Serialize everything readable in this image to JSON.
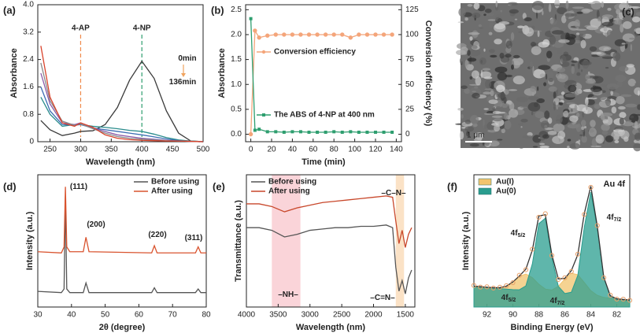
{
  "chart_data": [
    {
      "type": "line",
      "panel": "(a)",
      "xlabel": "Wavelength (nm)",
      "ylabel": "Absorbance",
      "xlim": [
        230,
        500
      ],
      "xticks": [
        250,
        300,
        350,
        400,
        450,
        500
      ],
      "ylim": [
        0,
        4
      ],
      "yticks": [
        0,
        0.8,
        1.6,
        2.4,
        3.2,
        {
          "value": 4,
          "label": "4.0"
        }
      ],
      "markers": [
        {
          "x": 300,
          "label": "4-AP",
          "color": "#f08a4b"
        },
        {
          "x": 400,
          "label": "4-NP",
          "color": "#2e9e6f"
        }
      ],
      "annotations": [
        {
          "text": "0min",
          "color": "#f0a35e"
        },
        {
          "text": "136min",
          "color": "#f0a35e"
        }
      ],
      "x": [
        235,
        250,
        270,
        290,
        300,
        320,
        340,
        360,
        380,
        400,
        420,
        440,
        460,
        480,
        500
      ],
      "series": [
        {
          "color": "#3a3a3a",
          "values": [
            0.62,
            0.35,
            0.18,
            0.25,
            0.3,
            0.32,
            0.5,
            1.0,
            1.8,
            2.35,
            1.85,
            0.9,
            0.25,
            0.02,
            0
          ]
        },
        {
          "color": "#2a8c8c",
          "values": [
            1.3,
            0.8,
            0.45,
            0.5,
            0.5,
            0.45,
            0.42,
            0.38,
            0.33,
            0.3,
            0.22,
            0.12,
            0.05,
            0.02,
            0
          ]
        },
        {
          "color": "#3b6db3",
          "values": [
            1.6,
            0.9,
            0.5,
            0.48,
            0.5,
            0.4,
            0.35,
            0.3,
            0.25,
            0.2,
            0.14,
            0.08,
            0.03,
            0.01,
            0
          ]
        },
        {
          "color": "#8a5aa8",
          "values": [
            2.0,
            1.1,
            0.55,
            0.5,
            0.55,
            0.4,
            0.3,
            0.2,
            0.15,
            0.1,
            0.07,
            0.04,
            0.02,
            0.01,
            0
          ]
        },
        {
          "color": "#8a8a8a",
          "values": [
            2.3,
            1.2,
            0.6,
            0.48,
            0.52,
            0.38,
            0.25,
            0.15,
            0.1,
            0.07,
            0.05,
            0.03,
            0.02,
            0.01,
            0
          ]
        },
        {
          "color": "#d9432b",
          "values": [
            2.8,
            1.3,
            0.55,
            0.45,
            0.55,
            0.42,
            0.2,
            0.1,
            0.06,
            0.04,
            0.03,
            0.02,
            0.02,
            0.01,
            0
          ]
        }
      ]
    },
    {
      "type": "line",
      "panel": "(b)",
      "xlabel": "Time (min)",
      "ylabel": "Absorbance",
      "y2label": "Conversion efficiency (%)",
      "y2color": "#f4a57a",
      "xlim": [
        -5,
        145
      ],
      "xticks": [
        0,
        20,
        40,
        60,
        80,
        100,
        120,
        140
      ],
      "ylim": [
        -0.15,
        2.6
      ],
      "yticks": [
        {
          "value": 0,
          "label": "0.0"
        },
        0.5,
        {
          "value": 1,
          "label": "1.0"
        },
        1.5,
        {
          "value": 2,
          "label": "2.0"
        },
        2.5
      ],
      "y2lim": [
        -7.5,
        130
      ],
      "y2ticks": [
        0,
        25,
        50,
        75,
        100,
        125
      ],
      "legend": "inline",
      "x": [
        0,
        4,
        8,
        16,
        24,
        32,
        40,
        48,
        56,
        64,
        72,
        80,
        88,
        96,
        104,
        112,
        120,
        128,
        136
      ],
      "series": [
        {
          "name": "Conversion efficiency",
          "color": "#f4a57a",
          "axis": "y2",
          "marker": "o",
          "values": [
            0,
            104,
            97,
            99,
            100,
            100,
            100,
            100,
            100,
            100,
            100,
            100,
            100,
            97,
            100,
            100,
            100,
            100,
            100
          ]
        },
        {
          "name": "The ABS of 4-NP at 400 nm",
          "color": "#2e9e6f",
          "marker": "s",
          "values": [
            2.32,
            0.08,
            0.1,
            0.05,
            0.05,
            0.04,
            0.05,
            0.05,
            0.04,
            0.04,
            0.04,
            0.05,
            0.04,
            0.05,
            0.04,
            0.04,
            0.04,
            0.04,
            0.04
          ]
        }
      ]
    },
    {
      "type": "image",
      "panel": "(c)",
      "scale_bar": "1 μm"
    },
    {
      "type": "line",
      "panel": "(d)",
      "xlabel": "2θ (degree)",
      "ylabel": "Intensity (a.u.)",
      "xlim": [
        30,
        80
      ],
      "xticks": [
        30,
        40,
        50,
        60,
        70,
        80
      ],
      "ylim": [
        0,
        11
      ],
      "legend": "upper right",
      "annotations": [
        {
          "text": "(111)"
        },
        {
          "text": "(200)"
        },
        {
          "text": "(220)"
        },
        {
          "text": "(311)"
        }
      ],
      "x": [
        30,
        37,
        37.8,
        38.2,
        38.6,
        39.5,
        43.5,
        44.3,
        45.2,
        63.8,
        64.6,
        65.4,
        76.8,
        77.6,
        78.4,
        80
      ],
      "series": [
        {
          "name": "Before using",
          "color": "#555555",
          "values": [
            1.3,
            1.2,
            1.5,
            9.2,
            1.5,
            1.2,
            1.2,
            2.0,
            1.2,
            1.2,
            1.6,
            1.2,
            1.2,
            1.5,
            1.2,
            1.2
          ]
        },
        {
          "name": "After using",
          "color": "#d9532e",
          "values": [
            4.6,
            4.5,
            5.0,
            10.0,
            5.0,
            4.6,
            4.6,
            5.8,
            4.6,
            4.5,
            5.1,
            4.5,
            4.5,
            5.0,
            4.5,
            4.5
          ]
        }
      ]
    },
    {
      "type": "line",
      "panel": "(e)",
      "xlabel": "Wavelength (nm)",
      "ylabel": "Transmittance (a.u.)",
      "xlim": [
        4000,
        1350
      ],
      "xticks": [
        4000,
        3500,
        3000,
        2500,
        2000,
        1500
      ],
      "ylim": [
        0,
        10
      ],
      "legend": "upper left",
      "bands": [
        {
          "from": 3600,
          "to": 3150,
          "color": "#f7b7c0"
        },
        {
          "from": 1650,
          "to": 1520,
          "color": "#f8cfa0"
        }
      ],
      "annotations": [
        {
          "text": "–NH–"
        },
        {
          "text": "–C=N–"
        },
        {
          "text": "–C–N–"
        }
      ],
      "x": [
        4000,
        3800,
        3600,
        3400,
        3200,
        3000,
        2800,
        2600,
        2400,
        2200,
        2000,
        1800,
        1700,
        1650,
        1600,
        1550,
        1500,
        1450,
        1400
      ],
      "series": [
        {
          "name": "Before using",
          "color": "#555555",
          "values": [
            6.0,
            6.0,
            5.8,
            5.3,
            5.5,
            5.8,
            5.9,
            6.0,
            6.0,
            6.1,
            6.1,
            6.2,
            6.0,
            3.0,
            1.2,
            2.0,
            1.0,
            2.2,
            2.8
          ]
        },
        {
          "name": "After using",
          "color": "#c8472a",
          "values": [
            7.8,
            7.8,
            7.6,
            7.2,
            7.5,
            7.7,
            7.9,
            8.0,
            8.1,
            8.2,
            8.3,
            8.4,
            8.3,
            6.5,
            4.8,
            5.8,
            4.5,
            5.5,
            6.0
          ]
        }
      ]
    },
    {
      "type": "area",
      "panel": "(f)",
      "title": "Au 4f",
      "xlabel": "Binding Energy (eV)",
      "ylabel": "Intensity (a.u.)",
      "xlim": [
        93,
        81
      ],
      "xticks": [
        92,
        90,
        88,
        86,
        84,
        82
      ],
      "ylim": [
        0.5,
        10
      ],
      "legend": "upper left",
      "annotations": [
        {
          "text": "4f",
          "sub": "5/2",
          "color": "#2a9d8f"
        },
        {
          "text": "4f",
          "sub": "7/2",
          "color": "#2a9d8f"
        },
        {
          "text": "4f",
          "sub": "5/2",
          "color": "#e0a040"
        },
        {
          "text": "4f",
          "sub": "7/2",
          "color": "#e0a040"
        }
      ],
      "x": [
        93,
        92.5,
        92,
        91.5,
        91,
        90.5,
        90,
        89.5,
        89,
        88.5,
        88,
        87.5,
        87,
        86.5,
        86,
        85.5,
        85,
        84.5,
        84,
        83.5,
        83,
        82.5,
        82,
        81.5,
        81
      ],
      "series": [
        {
          "name": "Au(I)",
          "color": "#f2c46d",
          "fill": true,
          "values": [
            2.0,
            1.96,
            1.92,
            1.88,
            1.89,
            2.0,
            2.3,
            2.7,
            2.87,
            2.61,
            2.14,
            1.79,
            1.72,
            1.99,
            2.51,
            2.93,
            2.82,
            2.26,
            1.68,
            1.34,
            1.19,
            1.13,
            1.08,
            1.04,
            1.0
          ]
        },
        {
          "name": "Au(0)",
          "color": "#2a9d8f",
          "fill": true,
          "values": [
            2.0,
            1.96,
            1.92,
            1.88,
            1.83,
            1.79,
            1.75,
            1.74,
            2.02,
            3.6,
            6.49,
            6.88,
            4.04,
            1.99,
            1.47,
            1.56,
            2.77,
            6.25,
            8.75,
            6.17,
            2.61,
            1.31,
            1.09,
            1.04,
            1.0
          ]
        },
        {
          "color": "#333333",
          "values": [
            2.0,
            1.96,
            1.92,
            1.89,
            1.89,
            2.0,
            2.3,
            2.73,
            3.22,
            4.59,
            7.04,
            7.13,
            4.26,
            2.52,
            2.56,
            3.11,
            4.26,
            7.22,
            9.18,
            6.3,
            2.64,
            1.31,
            1.09,
            1.04,
            1.0
          ]
        },
        {
          "color": "#e8a06a",
          "marker": "o",
          "line": false,
          "values": [
            2.05,
            1.93,
            1.95,
            1.86,
            1.92,
            2.03,
            2.25,
            2.78,
            3.18,
            4.65,
            6.95,
            7.2,
            4.2,
            2.48,
            2.6,
            3.05,
            4.3,
            7.15,
            9.1,
            6.35,
            2.6,
            1.35,
            1.07,
            1.06,
            0.98
          ]
        }
      ]
    }
  ]
}
